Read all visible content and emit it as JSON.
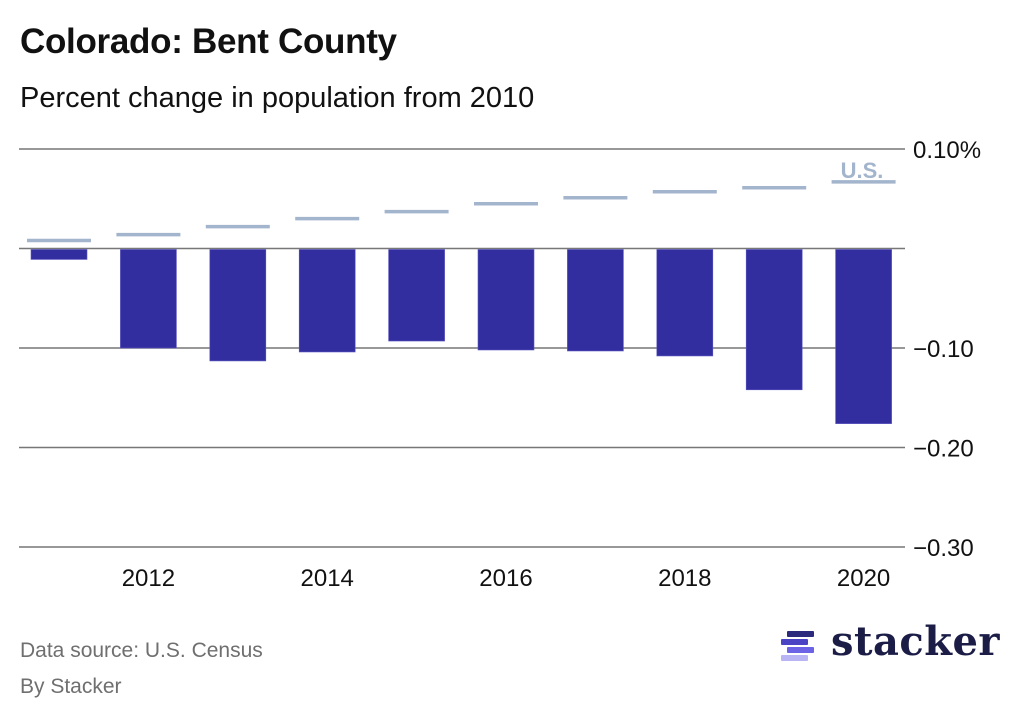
{
  "header": {
    "title": "Colorado: Bent County",
    "subtitle": "Percent change in population from 2010"
  },
  "footer": {
    "source": "Data source: U.S. Census",
    "byline": "By Stacker",
    "logo_text": "stacker",
    "logo_colors": [
      "#2b2a7d",
      "#4a43c4",
      "#6b62e6",
      "#b9b5f5"
    ]
  },
  "colors": {
    "bar": "#332e9f",
    "us_line": "#a3b5cc",
    "grid": "#777777",
    "axis_text": "#111111"
  },
  "chart_data": {
    "type": "bar",
    "title": "Colorado: Bent County",
    "subtitle": "Percent change in population from 2010",
    "xlabel": "",
    "ylabel": "",
    "categories": [
      "2011",
      "2012",
      "2013",
      "2014",
      "2015",
      "2016",
      "2017",
      "2018",
      "2019",
      "2020"
    ],
    "x_tick_labels": [
      "2012",
      "2014",
      "2016",
      "2018",
      "2020"
    ],
    "series": [
      {
        "name": "Bent County",
        "type": "bar",
        "values": [
          -0.011,
          -0.1,
          -0.113,
          -0.104,
          -0.093,
          -0.102,
          -0.103,
          -0.108,
          -0.142,
          -0.176
        ]
      },
      {
        "name": "U.S.",
        "type": "marker-line",
        "values": [
          0.008,
          0.014,
          0.022,
          0.03,
          0.037,
          0.045,
          0.051,
          0.057,
          0.061,
          0.067
        ]
      }
    ],
    "ylim": [
      -0.3,
      0.1
    ],
    "y_ticks": [
      0.1,
      0,
      -0.1,
      -0.2,
      -0.3
    ],
    "y_tick_labels": [
      "0.10%",
      "",
      "−0.10",
      "−0.20",
      "−0.30"
    ],
    "us_label": "U.S.",
    "grid": true,
    "y_axis_position": "right",
    "legend": "inline-top-right"
  }
}
